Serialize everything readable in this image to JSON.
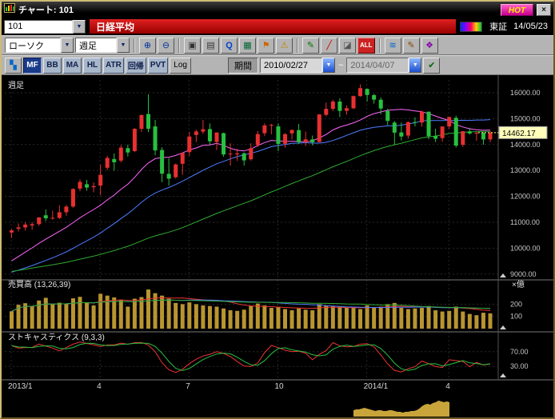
{
  "ui": {
    "dropdown_arrow": "▼"
  },
  "titlebar": {
    "title": "チャート: 101",
    "hot_label": "HOT",
    "close_label": "×"
  },
  "instrument": {
    "code": "101",
    "name": "日経平均",
    "exchange": "東証",
    "date": "14/05/23"
  },
  "toolbar1": {
    "chart_type": "ローソク",
    "timeframe": "週足",
    "icons": [
      {
        "name": "zoom-in-icon",
        "glyph": "⊕",
        "color": "#003399"
      },
      {
        "name": "zoom-out-icon",
        "glyph": "⊖",
        "color": "#003399"
      },
      {
        "sep": true
      },
      {
        "name": "capture-icon",
        "glyph": "▣",
        "color": "#333333"
      },
      {
        "name": "print-icon",
        "glyph": "▤",
        "color": "#333333"
      },
      {
        "name": "quote-icon",
        "glyph": "Q",
        "color": "#0044cc",
        "bold": true
      },
      {
        "name": "grid-icon",
        "glyph": "▦",
        "color": "#006633"
      },
      {
        "name": "flag-icon",
        "glyph": "⚑",
        "color": "#cc6600"
      },
      {
        "name": "alert-icon",
        "glyph": "⚠",
        "color": "#bb8800"
      },
      {
        "sep": true
      },
      {
        "name": "draw-line-icon",
        "glyph": "✎",
        "color": "#007700"
      },
      {
        "name": "trend-line-icon",
        "glyph": "╱",
        "color": "#cc0000"
      },
      {
        "name": "eraser-icon",
        "glyph": "◪",
        "color": "#555555"
      },
      {
        "name": "all-clear-button",
        "glyph": "ALL",
        "color": "#ffffff",
        "bg": "#cc2222",
        "bold": true,
        "small": true
      },
      {
        "sep": true
      },
      {
        "name": "multi-color-icon",
        "glyph": "≋",
        "color": "#0066cc"
      },
      {
        "name": "pencil-icon",
        "glyph": "✎",
        "color": "#884400"
      },
      {
        "name": "palette-icon",
        "glyph": "❖",
        "color": "#8800aa"
      }
    ]
  },
  "toolbar2": {
    "window_icon": "▚",
    "indicator_buttons": [
      "MF",
      "BB",
      "MA",
      "HL",
      "ATR",
      "回帰",
      "PVT"
    ],
    "active_indicator": 0,
    "log_label": "Log",
    "period_label": "期間",
    "date_from": "2010/02/27",
    "date_to": "2014/04/07",
    "range_separator": "~",
    "apply_icon": "✔"
  },
  "chart_data": {
    "type": "candlestick",
    "title": "週足",
    "instrument": "日経平均",
    "last_price_label": "14462.17",
    "up_color": "#e83030",
    "down_color": "#28c040",
    "ma_windows": [
      13,
      26,
      52
    ],
    "ma_colors": [
      "#ff66ff",
      "#4d7dff",
      "#2faa2f"
    ],
    "price_axis": {
      "min": 9000,
      "max": 16000,
      "ticks": [
        16000,
        15000,
        14000,
        13000,
        12000,
        11000,
        10000,
        9000
      ]
    },
    "x_ticks": [
      {
        "index": 0,
        "label": "2013/1"
      },
      {
        "index": 13,
        "label": "4"
      },
      {
        "index": 26,
        "label": "7"
      },
      {
        "index": 39,
        "label": "10"
      },
      {
        "index": 52,
        "label": "2014/1"
      },
      {
        "index": 64,
        "label": "4"
      }
    ],
    "volume_panel": {
      "label": "売買高 (13,26,39)",
      "unit": "×億",
      "ticks": [
        200,
        100
      ],
      "bar_color": "#b89530",
      "ma_windows": [
        13,
        26,
        39
      ],
      "ma_colors": [
        "#ee3333",
        "#4d7dff",
        "#2faa2f"
      ]
    },
    "stoch_panel": {
      "label": "ストキャスティクス (9,3,3)",
      "ticks": [
        70,
        30
      ],
      "k_color": "#ee3333",
      "d_color": "#28c040"
    },
    "navigator": {
      "color": "#c9a43a",
      "heights": [
        8,
        9,
        9,
        10,
        11,
        10,
        9,
        8,
        7,
        8,
        8,
        7,
        7,
        8,
        8,
        7,
        6,
        6,
        5,
        6,
        6,
        7,
        7,
        8,
        10,
        13,
        15,
        16,
        15,
        17,
        18,
        20,
        19,
        18,
        19,
        18
      ]
    },
    "ma_seed_closes": [
      8560,
      8610,
      8670,
      8750,
      8830,
      8900,
      8960,
      9050,
      9120,
      9180,
      9240,
      9300,
      9350,
      9420,
      9520,
      9600,
      9550,
      9480,
      9400,
      9320,
      9250,
      9180,
      9100,
      9020,
      8950,
      8870,
      8800,
      8730,
      8680,
      8640,
      8600,
      8560,
      8540,
      8520,
      8560,
      8620,
      8700,
      8760,
      8720,
      8680,
      8640,
      8700,
      8800,
      8900,
      9050,
      9200,
      9400,
      9650,
      9900,
      10100,
      10230,
      10395
    ],
    "candle_columns": [
      "date",
      "open",
      "high",
      "low",
      "close",
      "volume"
    ],
    "candles": [
      [
        "2013/01/04",
        10604,
        10734,
        10398,
        10688,
        142
      ],
      [
        "2013/01/11",
        10745,
        10952,
        10644,
        10801,
        195
      ],
      [
        "2013/01/18",
        10801,
        11005,
        10680,
        10913,
        208
      ],
      [
        "2013/01/25",
        10878,
        11000,
        10709,
        10926,
        186
      ],
      [
        "2013/02/01",
        10930,
        11191,
        10862,
        11191,
        230
      ],
      [
        "2013/02/08",
        11271,
        11498,
        11046,
        11153,
        252
      ],
      [
        "2013/02/15",
        11153,
        11445,
        11108,
        11173,
        198
      ],
      [
        "2013/02/22",
        11170,
        11662,
        11128,
        11385,
        212
      ],
      [
        "2013/03/01",
        11390,
        11669,
        11253,
        11606,
        205
      ],
      [
        "2013/03/08",
        11608,
        12315,
        11563,
        12283,
        248
      ],
      [
        "2013/03/15",
        12300,
        12650,
        12200,
        12560,
        260
      ],
      [
        "2013/03/22",
        12468,
        12635,
        12220,
        12338,
        215
      ],
      [
        "2013/03/29",
        12350,
        12536,
        12156,
        12397,
        190
      ],
      [
        "2013/04/05",
        12416,
        13225,
        12042,
        12833,
        285
      ],
      [
        "2013/04/12",
        13106,
        13568,
        13020,
        13485,
        270
      ],
      [
        "2013/04/19",
        13440,
        13657,
        12994,
        13316,
        255
      ],
      [
        "2013/04/26",
        13380,
        13983,
        13310,
        13884,
        235
      ],
      [
        "2013/05/02",
        13860,
        13999,
        13541,
        13694,
        180
      ],
      [
        "2013/05/10",
        13745,
        14636,
        13710,
        14607,
        245
      ],
      [
        "2013/05/17",
        14608,
        15157,
        14486,
        15138,
        258
      ],
      [
        "2013/05/24",
        15180,
        15942,
        14483,
        14612,
        320
      ],
      [
        "2013/05/31",
        14700,
        14953,
        13589,
        13774,
        290
      ],
      [
        "2013/06/07",
        13790,
        13894,
        12548,
        12877,
        270
      ],
      [
        "2013/06/14",
        12870,
        13479,
        12415,
        12686,
        245
      ],
      [
        "2013/06/21",
        12740,
        13269,
        12685,
        13230,
        210
      ],
      [
        "2013/06/28",
        13260,
        13677,
        12834,
        13677,
        200
      ],
      [
        "2013/07/05",
        13710,
        14488,
        13562,
        14309,
        215
      ],
      [
        "2013/07/12",
        14370,
        14578,
        14098,
        14506,
        200
      ],
      [
        "2013/07/19",
        14500,
        14953,
        14411,
        14589,
        190
      ],
      [
        "2013/07/26",
        14600,
        14818,
        13993,
        14129,
        185
      ],
      [
        "2013/08/02",
        14100,
        14466,
        13784,
        14466,
        180
      ],
      [
        "2013/08/09",
        14440,
        14461,
        13532,
        13615,
        165
      ],
      [
        "2013/08/16",
        13650,
        14050,
        13188,
        13650,
        150
      ],
      [
        "2013/08/23",
        13620,
        13838,
        13365,
        13660,
        145
      ],
      [
        "2013/08/30",
        13660,
        13705,
        13188,
        13388,
        155
      ],
      [
        "2013/09/06",
        13430,
        14054,
        13380,
        13860,
        185
      ],
      [
        "2013/09/13",
        13980,
        14529,
        13915,
        14404,
        205
      ],
      [
        "2013/09/20",
        14440,
        14817,
        14324,
        14742,
        190
      ],
      [
        "2013/09/27",
        14750,
        14799,
        14398,
        14760,
        170
      ],
      [
        "2013/10/04",
        14700,
        14817,
        13748,
        14024,
        175
      ],
      [
        "2013/10/11",
        14030,
        14440,
        13884,
        14404,
        160
      ],
      [
        "2013/10/18",
        14430,
        14586,
        14194,
        14561,
        150
      ],
      [
        "2013/10/25",
        14560,
        14799,
        14026,
        14088,
        165
      ],
      [
        "2013/11/01",
        14100,
        14502,
        13945,
        14201,
        155
      ],
      [
        "2013/11/08",
        14200,
        14350,
        13967,
        14086,
        150
      ],
      [
        "2013/11/15",
        14100,
        15175,
        14089,
        15165,
        200
      ],
      [
        "2013/11/22",
        15150,
        15616,
        15093,
        15381,
        190
      ],
      [
        "2013/11/29",
        15380,
        15727,
        15292,
        15661,
        185
      ],
      [
        "2013/12/06",
        15660,
        15794,
        15059,
        15299,
        180
      ],
      [
        "2013/12/13",
        15300,
        15506,
        15152,
        15403,
        170
      ],
      [
        "2013/12/20",
        15400,
        15896,
        15367,
        15870,
        175
      ],
      [
        "2013/12/27",
        15870,
        16320,
        15842,
        16178,
        160
      ],
      [
        "2014/01/10",
        16147,
        16164,
        15667,
        15912,
        190
      ],
      [
        "2014/01/17",
        15910,
        15951,
        15576,
        15734,
        170
      ],
      [
        "2014/01/24",
        15730,
        15820,
        15166,
        15391,
        180
      ],
      [
        "2014/01/31",
        15300,
        15384,
        14748,
        14914,
        200
      ],
      [
        "2014/02/07",
        14850,
        14913,
        13995,
        14462,
        210
      ],
      [
        "2014/02/14",
        14470,
        14852,
        14153,
        14313,
        170
      ],
      [
        "2014/02/21",
        14350,
        14899,
        14224,
        14865,
        160
      ],
      [
        "2014/02/28",
        14870,
        15051,
        14697,
        14841,
        165
      ],
      [
        "2014/03/07",
        14850,
        15312,
        14694,
        15274,
        170
      ],
      [
        "2014/03/14",
        15270,
        15274,
        14203,
        14327,
        185
      ],
      [
        "2014/03/20",
        14330,
        14612,
        14096,
        14224,
        150
      ],
      [
        "2014/03/28",
        14250,
        14703,
        14114,
        14696,
        140
      ],
      [
        "2014/04/04",
        14700,
        15004,
        14603,
        15064,
        145
      ],
      [
        "2014/04/11",
        15030,
        15110,
        13885,
        13960,
        180
      ],
      [
        "2014/04/18",
        13990,
        14516,
        13910,
        14516,
        140
      ],
      [
        "2014/04/25",
        14510,
        14649,
        14388,
        14429,
        120
      ],
      [
        "2014/05/02",
        14430,
        14512,
        14150,
        14457,
        110
      ],
      [
        "2014/05/09",
        14460,
        14478,
        13990,
        14199,
        130
      ],
      [
        "2014/05/16",
        14200,
        14530,
        14097,
        14462.17,
        125
      ]
    ]
  }
}
